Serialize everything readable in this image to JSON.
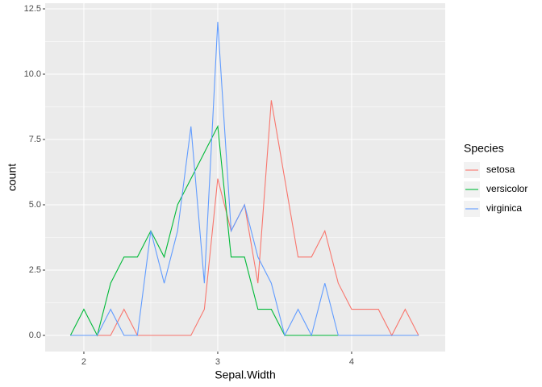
{
  "chart_data": {
    "type": "line",
    "x_label": "Sepal.Width",
    "y_label": "count",
    "legend_title": "Species",
    "x": [
      1.9,
      2.0,
      2.1,
      2.2,
      2.3,
      2.4,
      2.5,
      2.6,
      2.7,
      2.8,
      2.9,
      3.0,
      3.1,
      3.2,
      3.3,
      3.4,
      3.5,
      3.6,
      3.7,
      3.8,
      3.9,
      4.0,
      4.1,
      4.2,
      4.3,
      4.4,
      4.5
    ],
    "series": [
      {
        "name": "setosa",
        "color": "#F8766D",
        "values": [
          0,
          0,
          0,
          0,
          1,
          0,
          0,
          0,
          0,
          0,
          1,
          6,
          4,
          5,
          2,
          9,
          6,
          3,
          3,
          4,
          2,
          1,
          1,
          1,
          0,
          1,
          0
        ]
      },
      {
        "name": "versicolor",
        "color": "#00BA38",
        "values": [
          0,
          1,
          0,
          2,
          3,
          3,
          4,
          3,
          5,
          6,
          7,
          8,
          3,
          3,
          1,
          1,
          0,
          0,
          0,
          0,
          0,
          0,
          0,
          0,
          0,
          0,
          0
        ]
      },
      {
        "name": "virginica",
        "color": "#619CFF",
        "values": [
          0,
          0,
          0,
          1,
          0,
          0,
          4,
          2,
          4,
          8,
          2,
          12,
          4,
          5,
          3,
          2,
          0,
          1,
          0,
          2,
          0,
          0,
          0,
          0,
          0,
          0,
          0
        ]
      }
    ],
    "xlim": [
      1.711,
      4.699
    ],
    "xticks": [
      2,
      3,
      4
    ],
    "ylim": [
      -0.617,
      12.716
    ],
    "yticks": [
      {
        "value": 0,
        "label": "0.0"
      },
      2.5,
      {
        "value": 5,
        "label": "5.0"
      },
      7.5,
      {
        "value": 10,
        "label": "10.0"
      },
      12.5
    ],
    "grid": true,
    "legend_position": "right"
  }
}
